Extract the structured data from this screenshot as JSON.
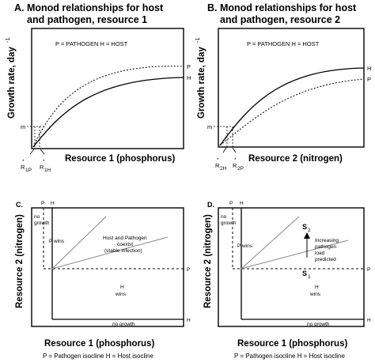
{
  "panels": {
    "a": {
      "title_line1": "A.  Monod relationships for host",
      "title_line2": "and pathogen, resource 1",
      "ylabel": "Growth rate, day",
      "ylabel_exp": "-1",
      "xlabel": "Resource 1 (phosphorus)",
      "legend": "P = PATHOGEN   H = HOST",
      "curve_label_p": "P",
      "curve_label_h": "H",
      "m_label": "m",
      "r_label_1_main": "R",
      "r_label_1_sub": "1P",
      "r_label_2_main": "R",
      "r_label_2_sub": "1H",
      "r_star": "*"
    },
    "b": {
      "title_line1": "B.  Monod relationships for host",
      "title_line2": "and pathogen, resource 2",
      "ylabel": "Growth rate, day",
      "ylabel_exp": "-1",
      "xlabel": "Resource 2 (nitrogen)",
      "legend": "P = PATHOGEN   H = HOST",
      "curve_label_h": "H",
      "curve_label_p": "P",
      "m_label": "m",
      "r_label_1_main": "R",
      "r_label_1_sub": "2H",
      "r_label_2_main": "R",
      "r_label_2_sub": "2P",
      "r_star": "*"
    },
    "c": {
      "tag": "C.",
      "ylabel": "Resource 2 (nitrogen)",
      "xlabel": "Resource 1 (phosphorus)",
      "footnote": "P = Pathogen isocline   H = Host isocline",
      "top_p": "P",
      "top_h": "H",
      "right_p": "P",
      "right_h": "H",
      "no_growth_left_1": "no",
      "no_growth_left_2": "growth",
      "no_growth_bottom": "no growth",
      "p_wins_p": "P",
      "p_wins_wins": "wins",
      "h_wins_h": "H",
      "h_wins_wins": "wins",
      "coexist_1": "Host and Pathogen",
      "coexist_2": "coexist",
      "coexist_3": "(stable infection)"
    },
    "d": {
      "tag": "D.",
      "ylabel": "Resource 2 (nitrogen)",
      "xlabel": "Resource 1 (phosphorus)",
      "footnote": "P = Pathogen isocline   H = Host isocline",
      "top_p": "P",
      "top_h": "H",
      "right_p": "P",
      "right_h": "H",
      "no_growth_left_1": "no",
      "no_growth_left_2": "growth",
      "no_growth_bottom": "no growth",
      "p_wins_p": "P",
      "p_wins_wins": "wins",
      "h_wins_h": "H",
      "h_wins_wins": "wins",
      "s2_main": "S",
      "s2_sub": "2",
      "s1_main": "S",
      "s1_sub": "1",
      "arrow_text_1": "Increasing",
      "arrow_text_2": "pathogen",
      "arrow_text_3": "load",
      "arrow_text_4": "predicted"
    }
  }
}
